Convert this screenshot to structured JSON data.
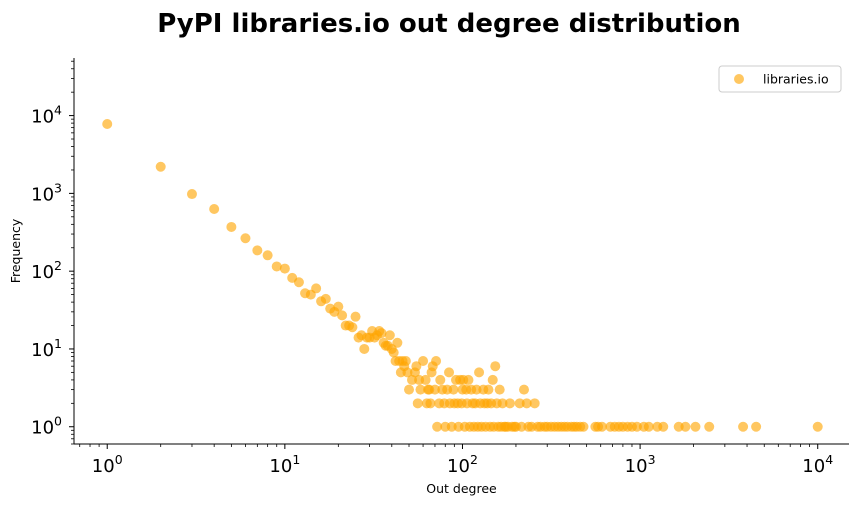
{
  "chart_data": {
    "type": "scatter",
    "title": "PyPI libraries.io out degree distribution",
    "xlabel": "Out degree",
    "ylabel": "Frequency",
    "xscale": "log",
    "yscale": "log",
    "xlim": [
      0.65,
      15000
    ],
    "ylim": [
      0.6,
      55000
    ],
    "x_ticks": [
      1,
      10,
      100,
      1000,
      10000
    ],
    "y_ticks": [
      1,
      10,
      100,
      1000,
      10000
    ],
    "grid": false,
    "legend": {
      "position": "top-right",
      "entries": [
        "libraries.io"
      ]
    },
    "series": [
      {
        "name": "libraries.io",
        "color": "#FFA500",
        "points": [
          [
            1,
            7800
          ],
          [
            2,
            2200
          ],
          [
            3,
            980
          ],
          [
            4,
            630
          ],
          [
            5,
            370
          ],
          [
            6,
            265
          ],
          [
            7,
            185
          ],
          [
            8,
            160
          ],
          [
            9,
            115
          ],
          [
            10,
            108
          ],
          [
            11,
            82
          ],
          [
            12,
            72
          ],
          [
            13,
            52
          ],
          [
            14,
            50
          ],
          [
            15,
            60
          ],
          [
            16,
            41
          ],
          [
            17,
            44
          ],
          [
            18,
            33
          ],
          [
            19,
            30
          ],
          [
            20,
            35
          ],
          [
            21,
            27
          ],
          [
            22,
            20
          ],
          [
            23,
            20
          ],
          [
            24,
            19
          ],
          [
            25,
            26
          ],
          [
            26,
            14
          ],
          [
            27,
            15
          ],
          [
            28,
            10
          ],
          [
            29,
            14
          ],
          [
            30,
            14
          ],
          [
            31,
            17
          ],
          [
            32,
            14
          ],
          [
            33,
            15
          ],
          [
            34,
            17
          ],
          [
            35,
            16
          ],
          [
            36,
            12
          ],
          [
            37,
            11
          ],
          [
            38,
            11
          ],
          [
            39,
            15
          ],
          [
            40,
            10
          ],
          [
            41,
            9
          ],
          [
            42,
            7
          ],
          [
            43,
            12
          ],
          [
            44,
            7
          ],
          [
            45,
            5
          ],
          [
            46,
            7
          ],
          [
            47,
            6
          ],
          [
            48,
            7
          ],
          [
            49,
            5
          ],
          [
            50,
            3
          ],
          [
            52,
            4
          ],
          [
            54,
            5
          ],
          [
            55,
            6
          ],
          [
            56,
            2
          ],
          [
            57,
            4
          ],
          [
            58,
            3
          ],
          [
            60,
            7
          ],
          [
            62,
            4
          ],
          [
            63,
            2
          ],
          [
            64,
            3
          ],
          [
            65,
            3
          ],
          [
            66,
            2
          ],
          [
            67,
            5
          ],
          [
            68,
            6
          ],
          [
            70,
            3
          ],
          [
            71,
            7
          ],
          [
            72,
            1
          ],
          [
            74,
            2
          ],
          [
            75,
            4
          ],
          [
            77,
            3
          ],
          [
            79,
            2
          ],
          [
            80,
            1
          ],
          [
            82,
            3
          ],
          [
            84,
            5
          ],
          [
            85,
            2
          ],
          [
            87,
            1
          ],
          [
            89,
            3
          ],
          [
            90,
            2
          ],
          [
            92,
            4
          ],
          [
            94,
            2
          ],
          [
            95,
            1
          ],
          [
            97,
            4
          ],
          [
            99,
            2
          ],
          [
            100,
            3
          ],
          [
            101,
            4
          ],
          [
            103,
            1
          ],
          [
            105,
            3
          ],
          [
            106,
            2
          ],
          [
            108,
            4
          ],
          [
            110,
            1
          ],
          [
            112,
            3
          ],
          [
            114,
            2
          ],
          [
            116,
            1
          ],
          [
            118,
            2
          ],
          [
            120,
            3
          ],
          [
            122,
            1
          ],
          [
            124,
            5
          ],
          [
            126,
            2
          ],
          [
            128,
            1
          ],
          [
            131,
            3
          ],
          [
            133,
            2
          ],
          [
            135,
            1
          ],
          [
            138,
            2
          ],
          [
            140,
            3
          ],
          [
            143,
            1
          ],
          [
            145,
            2
          ],
          [
            148,
            4
          ],
          [
            150,
            1
          ],
          [
            153,
            6
          ],
          [
            156,
            2
          ],
          [
            159,
            1
          ],
          [
            162,
            3
          ],
          [
            165,
            1
          ],
          [
            168,
            2
          ],
          [
            172,
            1
          ],
          [
            175,
            1
          ],
          [
            180,
            1
          ],
          [
            185,
            2
          ],
          [
            190,
            1
          ],
          [
            196,
            1
          ],
          [
            200,
            1
          ],
          [
            210,
            2
          ],
          [
            215,
            1
          ],
          [
            222,
            3
          ],
          [
            230,
            2
          ],
          [
            235,
            1
          ],
          [
            245,
            1
          ],
          [
            255,
            2
          ],
          [
            265,
            1
          ],
          [
            275,
            1
          ],
          [
            290,
            1
          ],
          [
            300,
            1
          ],
          [
            315,
            1
          ],
          [
            330,
            1
          ],
          [
            345,
            1
          ],
          [
            360,
            1
          ],
          [
            375,
            1
          ],
          [
            390,
            1
          ],
          [
            410,
            1
          ],
          [
            425,
            1
          ],
          [
            440,
            1
          ],
          [
            460,
            1
          ],
          [
            480,
            1
          ],
          [
            560,
            1
          ],
          [
            580,
            1
          ],
          [
            610,
            1
          ],
          [
            680,
            1
          ],
          [
            720,
            1
          ],
          [
            760,
            1
          ],
          [
            800,
            1
          ],
          [
            850,
            1
          ],
          [
            900,
            1
          ],
          [
            960,
            1
          ],
          [
            1050,
            1
          ],
          [
            1120,
            1
          ],
          [
            1250,
            1
          ],
          [
            1350,
            1
          ],
          [
            1650,
            1
          ],
          [
            1800,
            1
          ],
          [
            2050,
            1
          ],
          [
            2450,
            1
          ],
          [
            3800,
            1
          ],
          [
            4500,
            1
          ],
          [
            10000,
            1
          ]
        ]
      }
    ]
  }
}
